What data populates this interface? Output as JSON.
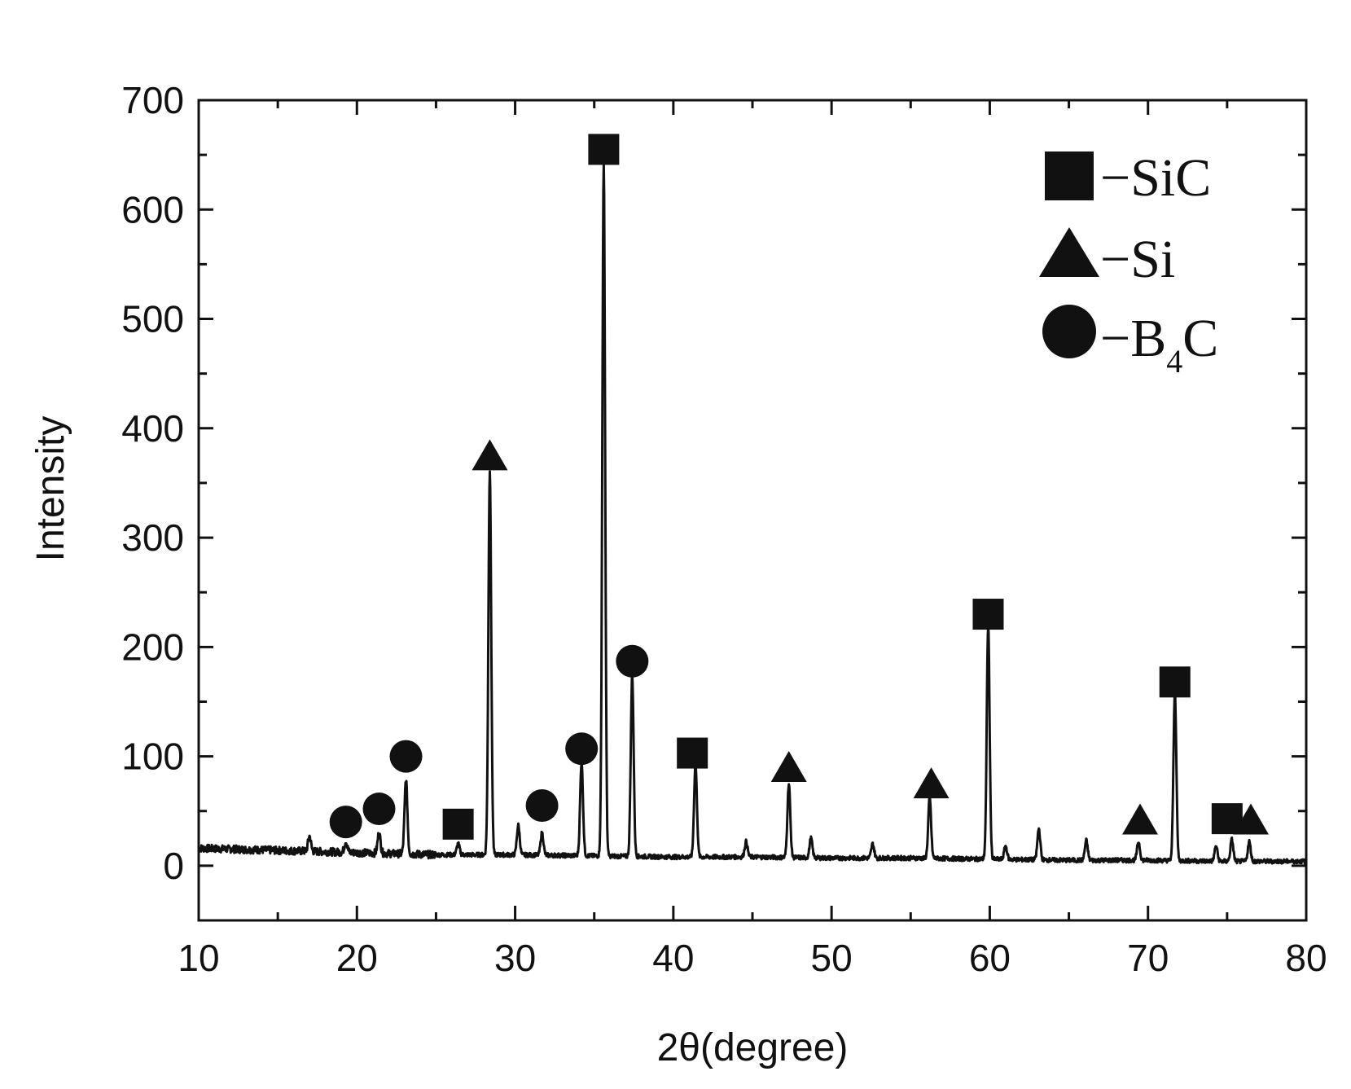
{
  "chart_data": {
    "type": "line",
    "xlabel": "2θ(degree)",
    "ylabel": "Intensity",
    "xlim": [
      10,
      80
    ],
    "ylim": [
      -50,
      700
    ],
    "xticks": [
      10,
      20,
      30,
      40,
      50,
      60,
      70,
      80
    ],
    "yticks": [
      0,
      100,
      200,
      300,
      400,
      500,
      600,
      700
    ],
    "grid": false,
    "legend_position": "top-right",
    "line_color": "#111111",
    "baseline": {
      "x": [
        10,
        15,
        20,
        25,
        30,
        35,
        40,
        45,
        50,
        55,
        60,
        65,
        70,
        75,
        80
      ],
      "y": [
        16,
        14,
        12,
        10,
        10,
        9,
        8,
        8,
        7,
        7,
        6,
        5,
        5,
        4,
        4
      ]
    },
    "peaks": [
      {
        "x": 17.0,
        "y": 27,
        "phase": ""
      },
      {
        "x": 19.3,
        "y": 22,
        "phase": "B4C"
      },
      {
        "x": 21.4,
        "y": 30,
        "phase": "B4C"
      },
      {
        "x": 23.1,
        "y": 78,
        "phase": "B4C"
      },
      {
        "x": 26.4,
        "y": 20,
        "phase": "SiC"
      },
      {
        "x": 28.4,
        "y": 360,
        "phase": "Si"
      },
      {
        "x": 30.2,
        "y": 37,
        "phase": ""
      },
      {
        "x": 31.7,
        "y": 30,
        "phase": "B4C"
      },
      {
        "x": 34.2,
        "y": 95,
        "phase": "B4C"
      },
      {
        "x": 35.6,
        "y": 640,
        "phase": "SiC"
      },
      {
        "x": 37.4,
        "y": 175,
        "phase": "B4C"
      },
      {
        "x": 41.4,
        "y": 93,
        "phase": "SiC"
      },
      {
        "x": 44.6,
        "y": 22,
        "phase": ""
      },
      {
        "x": 47.3,
        "y": 75,
        "phase": "Si"
      },
      {
        "x": 48.7,
        "y": 25,
        "phase": ""
      },
      {
        "x": 52.6,
        "y": 20,
        "phase": ""
      },
      {
        "x": 56.2,
        "y": 62,
        "phase": "Si"
      },
      {
        "x": 59.9,
        "y": 220,
        "phase": "SiC"
      },
      {
        "x": 61.0,
        "y": 18,
        "phase": ""
      },
      {
        "x": 63.1,
        "y": 34,
        "phase": ""
      },
      {
        "x": 66.1,
        "y": 23,
        "phase": ""
      },
      {
        "x": 69.4,
        "y": 22,
        "phase": "Si"
      },
      {
        "x": 71.7,
        "y": 160,
        "phase": "SiC"
      },
      {
        "x": 74.3,
        "y": 18,
        "phase": ""
      },
      {
        "x": 75.3,
        "y": 24,
        "phase": "SiC"
      },
      {
        "x": 76.4,
        "y": 22,
        "phase": "Si"
      }
    ],
    "markers": [
      {
        "x": 19.3,
        "y": 40,
        "phase": "B4C"
      },
      {
        "x": 21.4,
        "y": 52,
        "phase": "B4C"
      },
      {
        "x": 23.1,
        "y": 100,
        "phase": "B4C"
      },
      {
        "x": 26.4,
        "y": 38,
        "phase": "SiC"
      },
      {
        "x": 28.4,
        "y": 375,
        "phase": "Si"
      },
      {
        "x": 31.7,
        "y": 55,
        "phase": "B4C"
      },
      {
        "x": 34.2,
        "y": 107,
        "phase": "B4C"
      },
      {
        "x": 35.6,
        "y": 655,
        "phase": "SiC"
      },
      {
        "x": 37.4,
        "y": 187,
        "phase": "B4C"
      },
      {
        "x": 41.2,
        "y": 103,
        "phase": "SiC"
      },
      {
        "x": 47.3,
        "y": 90,
        "phase": "Si"
      },
      {
        "x": 56.3,
        "y": 75,
        "phase": "Si"
      },
      {
        "x": 59.9,
        "y": 230,
        "phase": "SiC"
      },
      {
        "x": 69.5,
        "y": 42,
        "phase": "Si"
      },
      {
        "x": 71.7,
        "y": 168,
        "phase": "SiC"
      },
      {
        "x": 75.0,
        "y": 43,
        "phase": "SiC"
      },
      {
        "x": 76.5,
        "y": 42,
        "phase": "Si"
      }
    ],
    "legend": [
      {
        "phase": "SiC",
        "symbol": "square",
        "label": "−SiC"
      },
      {
        "phase": "Si",
        "symbol": "triangle",
        "label": "−Si"
      },
      {
        "phase": "B4C",
        "symbol": "circle",
        "label": "−B",
        "label_sub": "4",
        "label_after": "C"
      }
    ]
  }
}
